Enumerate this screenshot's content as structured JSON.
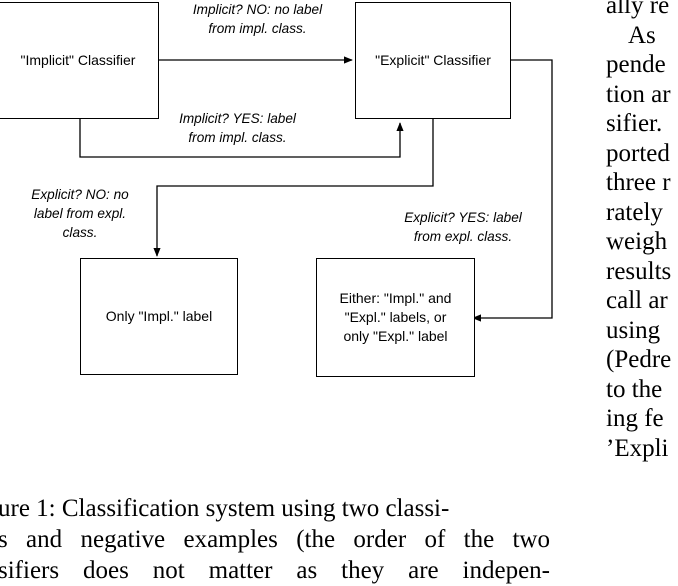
{
  "diagram": {
    "boxes": {
      "implicit": "\"Implicit\" Classifier",
      "explicit": "\"Explicit\" Classifier",
      "only_impl": "Only \"Impl.\" label",
      "either": [
        "Either: \"Impl.\" and",
        "\"Expl.\" labels, or",
        "only \"Expl.\" label"
      ]
    },
    "edge_labels": {
      "implicit_no": [
        "Implicit? NO: no label",
        "from impl. class."
      ],
      "implicit_yes": [
        "Implicit? YES: label",
        "from impl. class."
      ],
      "explicit_no": [
        "Explicit? NO: no",
        "label from expl.",
        "class."
      ],
      "explicit_yes": [
        "Explicit? YES: label",
        "from expl. class."
      ]
    }
  },
  "caption_lines": [
    "ure 1:  Classification system using two classi-",
    "s and negative examples (the order of the two",
    "sifiers does not matter as they are indepen-"
  ],
  "right_column_lines": [
    "ally re",
    "As",
    "pende",
    "tion ar",
    "sifier.",
    "ported",
    "three r",
    "rately",
    "weigh",
    "results",
    "call ar",
    "using",
    "(Pedre",
    "to the",
    "ing fe",
    "’Expli"
  ]
}
